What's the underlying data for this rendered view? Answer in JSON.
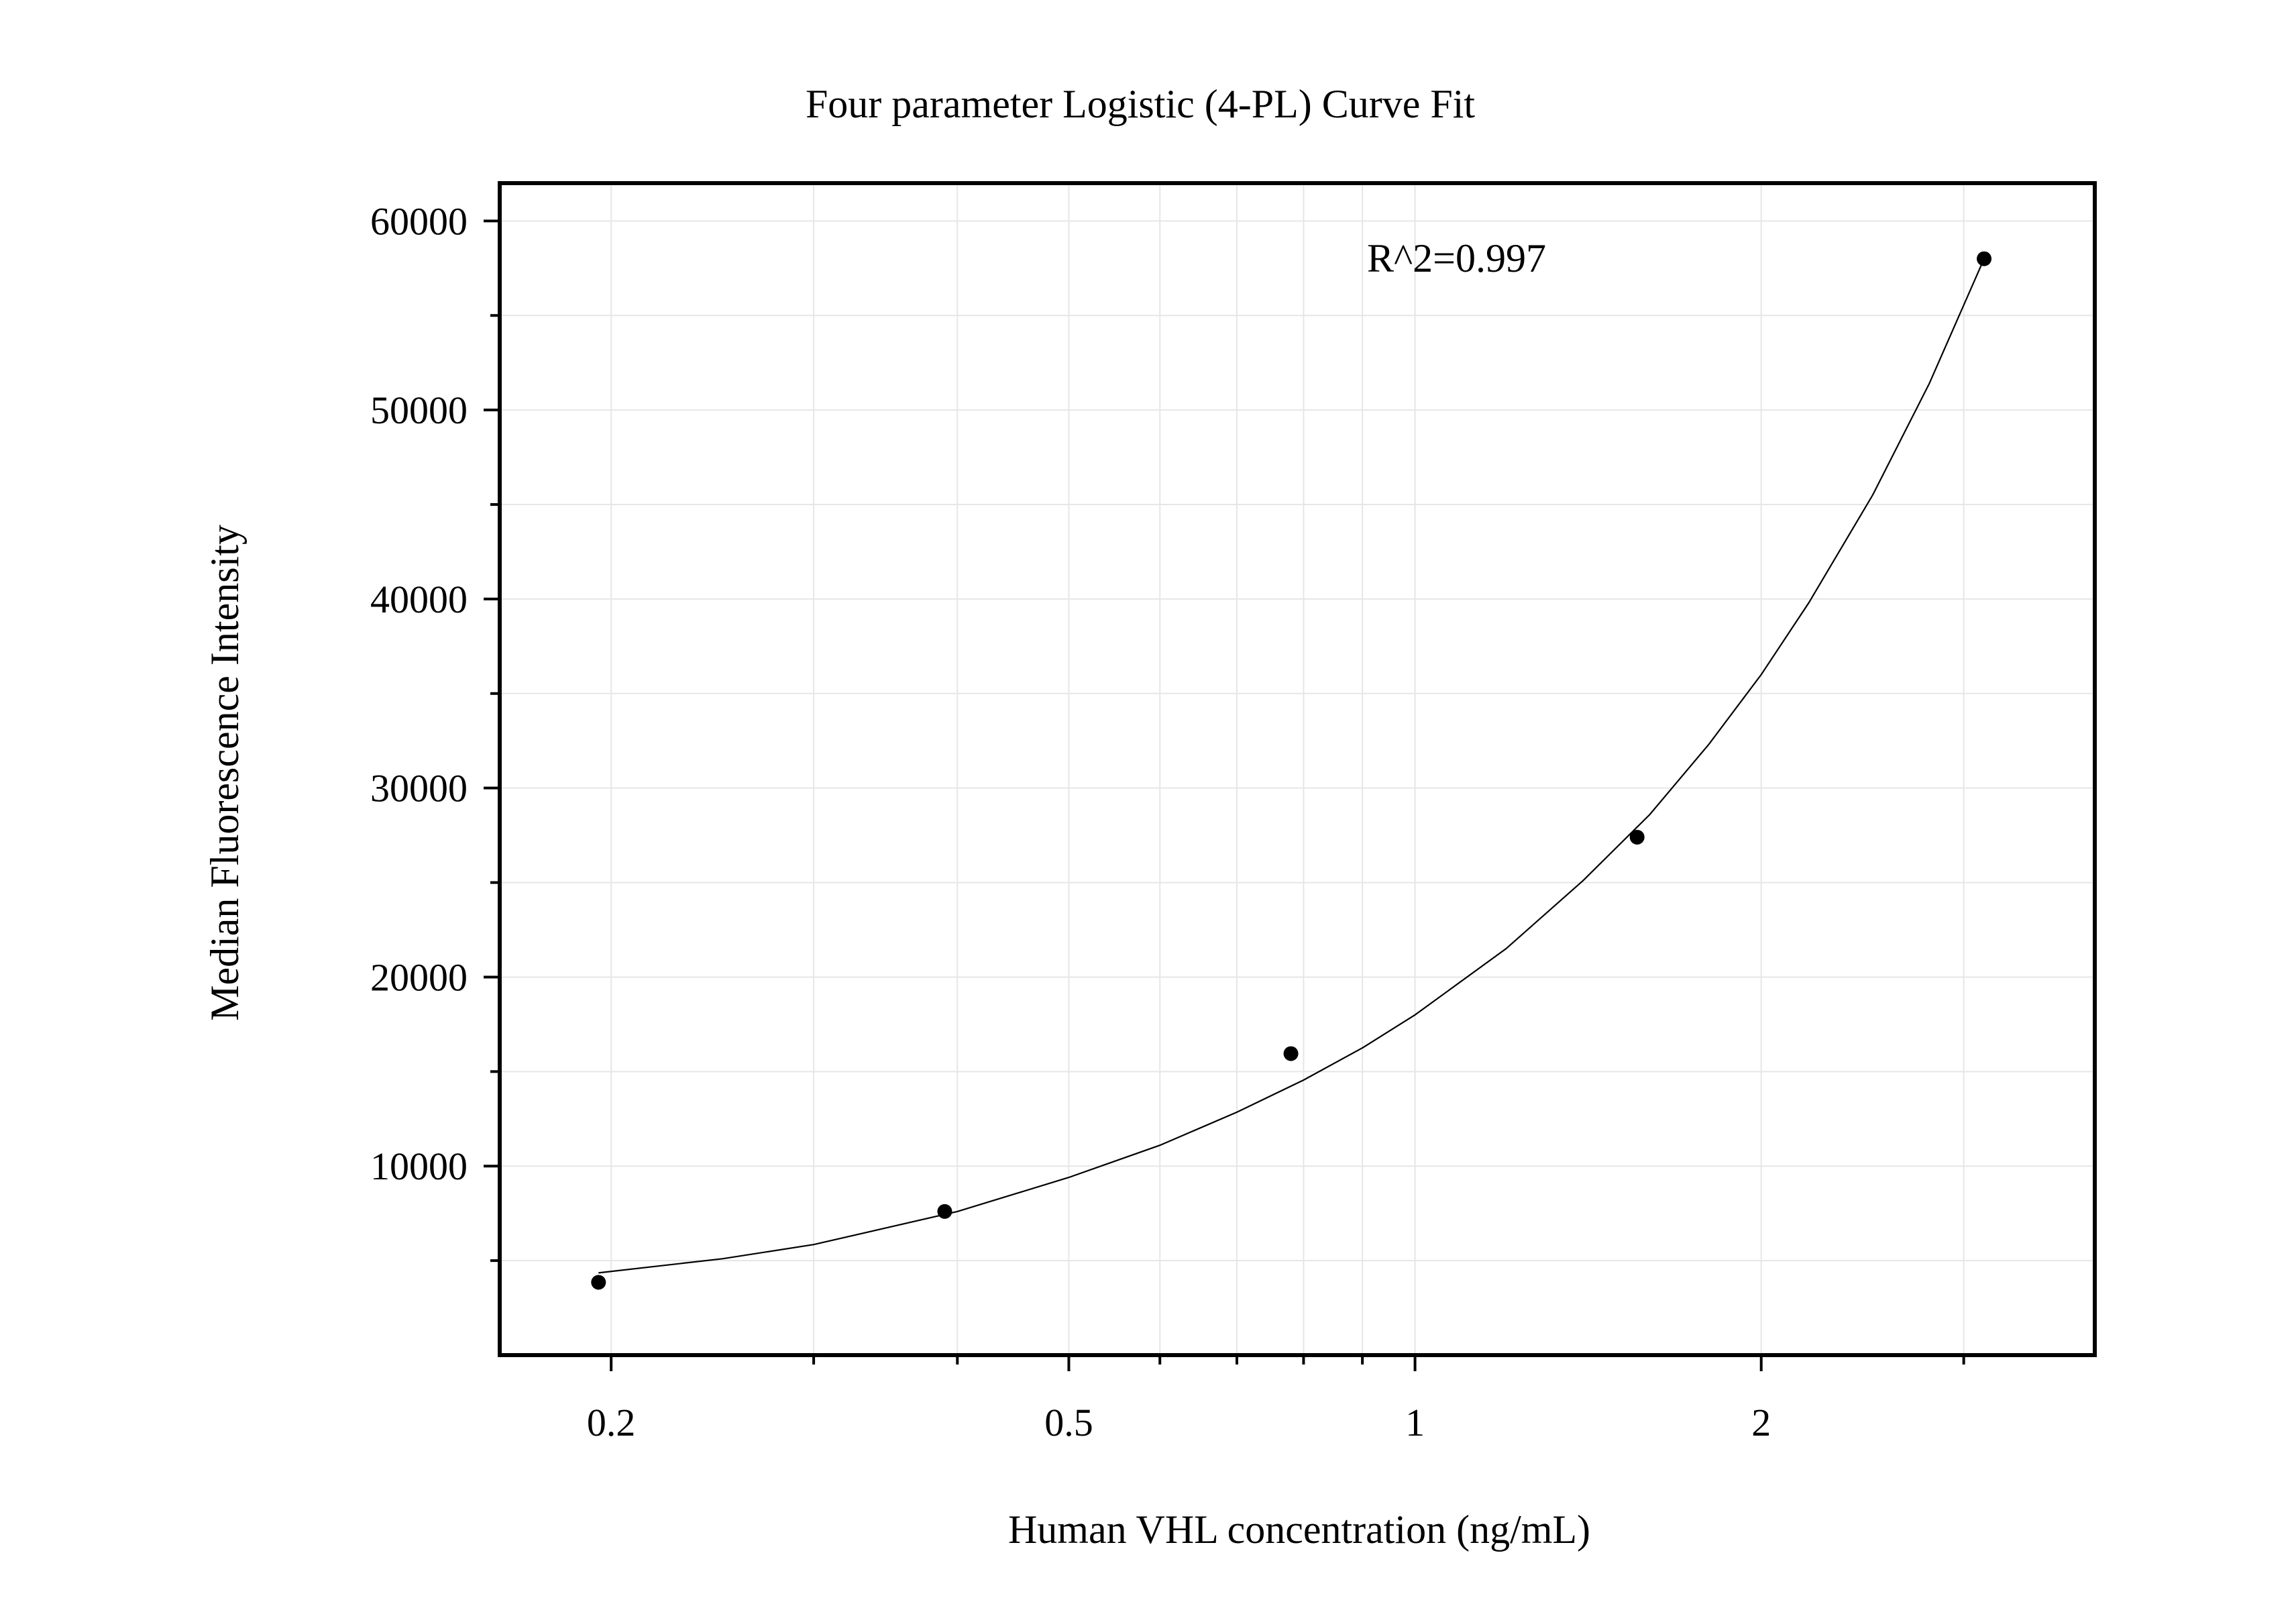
{
  "chart_data": {
    "type": "scatter",
    "title": "Four parameter Logistic (4-PL) Curve Fit",
    "xlabel": "Human VHL concentration (ng/mL)",
    "ylabel": "Median Fluorescence Intensity",
    "x_scale": "log",
    "xlim": [
      0.16,
      3.9
    ],
    "ylim": [
      0,
      62000
    ],
    "x_ticks": [
      0.2,
      0.5,
      1,
      2
    ],
    "x_tick_labels": [
      "0.2",
      "0.5",
      "1",
      "2"
    ],
    "y_ticks": [
      10000,
      20000,
      30000,
      40000,
      50000,
      60000
    ],
    "y_tick_labels": [
      "10000",
      "20000",
      "30000",
      "40000",
      "50000",
      "60000"
    ],
    "grid": true,
    "annotation": "R^2=0.997",
    "series": [
      {
        "x": [
          0.195,
          0.39,
          0.78,
          1.56,
          3.125
        ],
        "y": [
          3850,
          7600,
          15950,
          27400,
          58000
        ]
      }
    ],
    "fit_curve": {
      "x": [
        0.195,
        0.25,
        0.3,
        0.4,
        0.5,
        0.6,
        0.7,
        0.8,
        0.9,
        1.0,
        1.2,
        1.4,
        1.6,
        1.8,
        2.0,
        2.2,
        2.5,
        2.8,
        3.125
      ],
      "y": [
        4350,
        5100,
        5850,
        7600,
        9400,
        11100,
        12850,
        14550,
        16250,
        18000,
        21500,
        25100,
        28600,
        32300,
        36000,
        39800,
        45500,
        51400,
        58000
      ]
    },
    "colors": {
      "axis": "#000000",
      "grid": "#e6e6e6",
      "marker": "#000000",
      "curve": "#000000"
    }
  }
}
